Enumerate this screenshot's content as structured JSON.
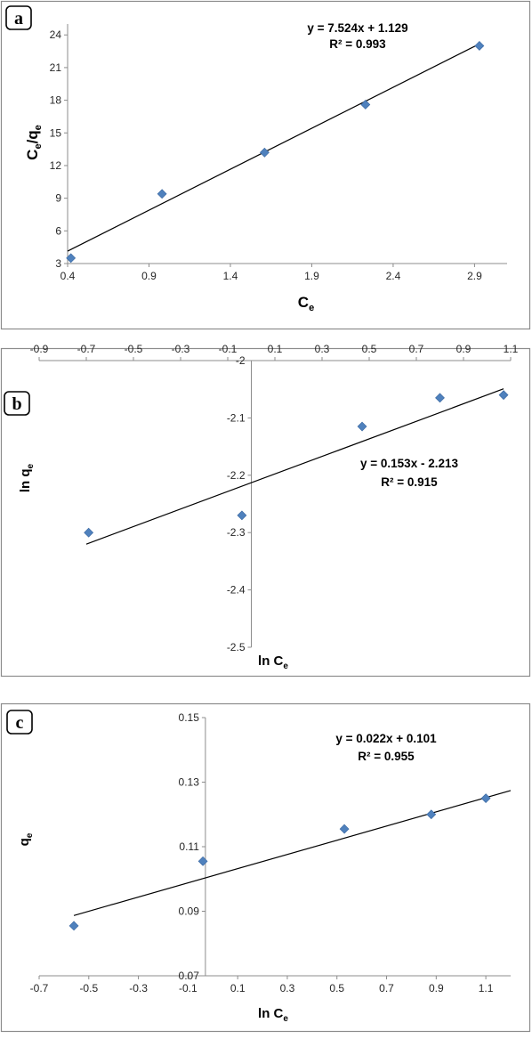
{
  "chart_data": [
    {
      "panel": "a",
      "type": "scatter",
      "xlabel": "C",
      "xlabel_sub": "e",
      "ylabel": "C",
      "ylabel_parts": [
        "C",
        "e",
        "/q",
        "e"
      ],
      "xlim": [
        0.4,
        3.1
      ],
      "ylim": [
        3,
        25
      ],
      "xticks": [
        "0.4",
        "0.9",
        "1.4",
        "1.9",
        "2.4",
        "2.9"
      ],
      "yticks": [
        "3",
        "6",
        "9",
        "12",
        "15",
        "18",
        "21",
        "24"
      ],
      "points": [
        {
          "x": 0.42,
          "y": 3.5
        },
        {
          "x": 0.98,
          "y": 9.4
        },
        {
          "x": 1.61,
          "y": 13.2
        },
        {
          "x": 2.23,
          "y": 17.6
        },
        {
          "x": 2.93,
          "y": 23.0
        }
      ],
      "trendline": {
        "slope": 7.524,
        "intercept": 1.129,
        "x_range": [
          0.4,
          2.93
        ]
      },
      "equation": "y = 7.524x + 1.129",
      "r2": "R² = 0.993",
      "marker_color": "#4f81bd",
      "grid": false
    },
    {
      "panel": "b",
      "type": "scatter",
      "xlabel": "ln C",
      "xlabel_sub": "e",
      "ylabel": "ln q",
      "ylabel_sub": "e",
      "xlim": [
        -0.9,
        1.1
      ],
      "ylim": [
        -2.5,
        -2.0
      ],
      "xticks": [
        "-0.9",
        "-0.7",
        "-0.5",
        "-0.3",
        "-0.1",
        "0.1",
        "0.3",
        "0.5",
        "0.7",
        "0.9",
        "1.1"
      ],
      "yticks": [
        "-2",
        "-2.1",
        "-2.2",
        "-2.3",
        "-2.4",
        "-2.5"
      ],
      "points": [
        {
          "x": -0.69,
          "y": -2.3
        },
        {
          "x": -0.04,
          "y": -2.27
        },
        {
          "x": 0.47,
          "y": -2.115
        },
        {
          "x": 0.8,
          "y": -2.065
        },
        {
          "x": 1.07,
          "y": -2.06
        }
      ],
      "trendline": {
        "slope": 0.153,
        "intercept": -2.213,
        "x_range": [
          -0.7,
          1.07
        ]
      },
      "equation": "y = 0.153x - 2.213",
      "r2": "R² = 0.915",
      "marker_color": "#4f81bd",
      "grid": false
    },
    {
      "panel": "c",
      "type": "scatter",
      "xlabel": "ln C",
      "xlabel_sub": "e",
      "ylabel": "q",
      "ylabel_sub": "e",
      "xlim": [
        -0.7,
        1.2
      ],
      "ylim": [
        0.07,
        0.15
      ],
      "xticks": [
        "-0.7",
        "-0.5",
        "-0.3",
        "-0.1",
        "0.1",
        "0.3",
        "0.5",
        "0.7",
        "0.9",
        "1.1"
      ],
      "yticks": [
        "0.07",
        "0.09",
        "0.11",
        "0.13",
        "0.15"
      ],
      "points": [
        {
          "x": -0.56,
          "y": 0.0855
        },
        {
          "x": -0.04,
          "y": 0.1055
        },
        {
          "x": 0.53,
          "y": 0.1155
        },
        {
          "x": 0.88,
          "y": 0.12
        },
        {
          "x": 1.1,
          "y": 0.125
        }
      ],
      "trendline": {
        "slope": 0.022,
        "intercept": 0.101,
        "x_range": [
          -0.56,
          1.2
        ]
      },
      "equation": "y = 0.022x + 0.101",
      "r2": "R² = 0.955",
      "marker_color": "#4f81bd",
      "grid": false
    }
  ]
}
